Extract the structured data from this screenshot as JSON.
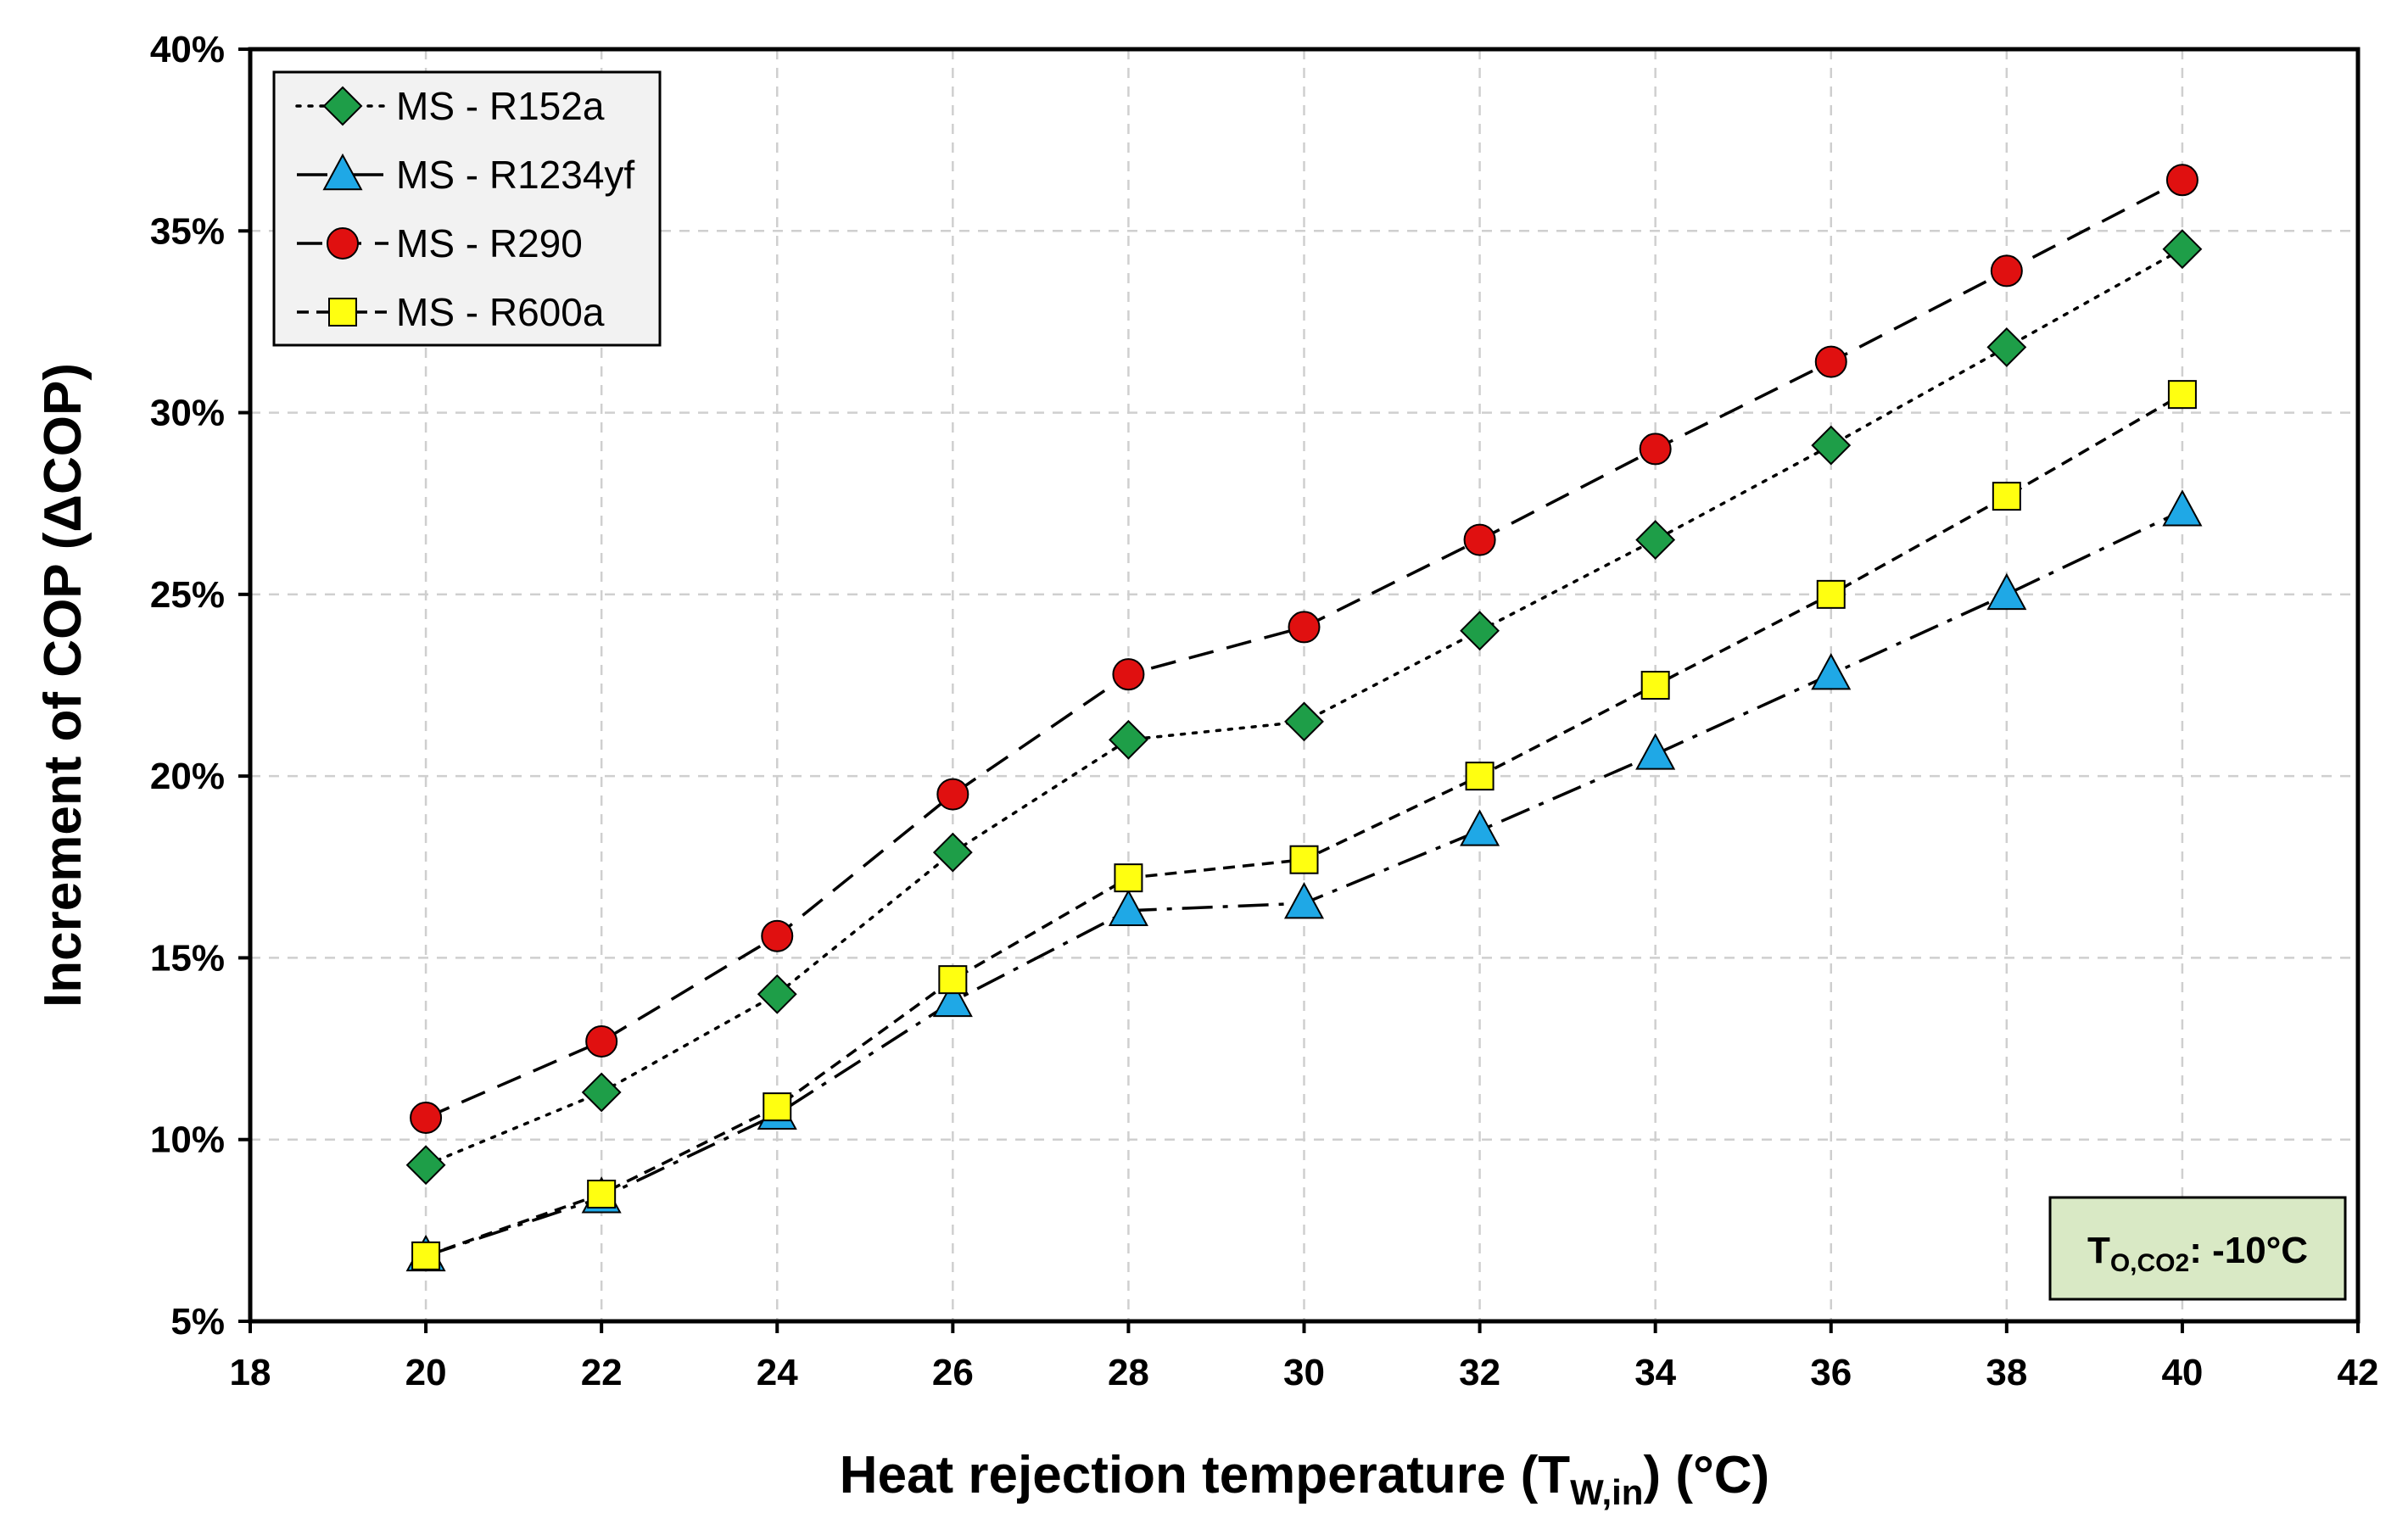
{
  "chart_data": {
    "type": "line",
    "title": "",
    "xlabel": {
      "main": "Heat rejection temperature (T",
      "sub": "W,in",
      "end": ") (°C)"
    },
    "ylabel": "Increment of COP (ΔCOP)",
    "xlim": [
      18,
      42
    ],
    "ylim": [
      5,
      40
    ],
    "xticks": [
      18,
      20,
      22,
      24,
      26,
      28,
      30,
      32,
      34,
      36,
      38,
      40,
      42
    ],
    "yticks": [
      5,
      10,
      15,
      20,
      25,
      30,
      35,
      40
    ],
    "ytick_labels": [
      "5%",
      "10%",
      "15%",
      "20%",
      "25%",
      "30%",
      "35%",
      "40%"
    ],
    "grid": true,
    "legend_position": "top-left",
    "x": [
      20,
      22,
      24,
      26,
      28,
      30,
      32,
      34,
      36,
      38,
      40
    ],
    "series": [
      {
        "name": "MS - R152a",
        "marker": "diamond",
        "dash": "dotted",
        "color": "#1e9e48",
        "values": [
          9.3,
          11.3,
          14.0,
          17.9,
          21.0,
          21.5,
          24.0,
          26.5,
          29.1,
          31.8,
          34.5
        ]
      },
      {
        "name": "MS - R1234yf",
        "marker": "triangle",
        "dash": "dashdot",
        "color": "#1fa8e6",
        "values": [
          6.8,
          8.4,
          10.7,
          13.8,
          16.3,
          16.5,
          18.5,
          20.6,
          22.8,
          25.0,
          27.3
        ]
      },
      {
        "name": "MS - R290",
        "marker": "circle",
        "dash": "dashed",
        "color": "#e01010",
        "values": [
          10.6,
          12.7,
          15.6,
          19.5,
          22.8,
          24.1,
          26.5,
          29.0,
          31.4,
          33.9,
          36.4
        ]
      },
      {
        "name": "MS - R600a",
        "marker": "square",
        "dash": "shortdash",
        "color": "#ffff10",
        "values": [
          6.8,
          8.5,
          10.9,
          14.4,
          17.2,
          17.7,
          20.0,
          22.5,
          25.0,
          27.7,
          30.5
        ]
      }
    ],
    "annotation": {
      "main": "T",
      "sub": "O,CO2",
      "rest": ": -10°C",
      "background": "#d9e9c5"
    }
  }
}
